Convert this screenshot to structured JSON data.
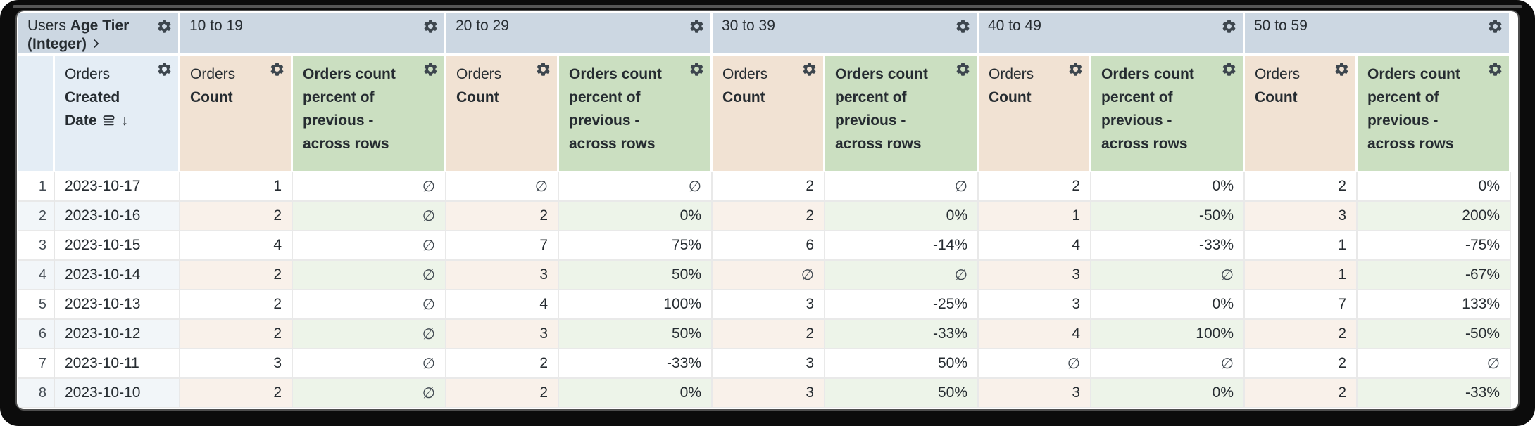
{
  "table": {
    "corner": {
      "dimension_prefix": "Users",
      "dimension_name": "Age Tier (Integer)",
      "row_field_prefix": "Orders",
      "row_field_name": "Created Date"
    },
    "tiers": [
      {
        "label": "10 to 19"
      },
      {
        "label": "20 to 29"
      },
      {
        "label": "30 to 39"
      },
      {
        "label": "40 to 49"
      },
      {
        "label": "50 to 59"
      }
    ],
    "measures": {
      "count_prefix": "Orders",
      "count_name": "Count",
      "pct_name": "Orders count percent of previous - across rows"
    },
    "icons": {
      "sort_desc": "↓"
    },
    "null_symbol": "∅",
    "rows": [
      {
        "n": "1",
        "date": "2023-10-17",
        "values": [
          "1",
          "∅",
          "∅",
          "∅",
          "2",
          "∅",
          "2",
          "0%",
          "2",
          "0%"
        ]
      },
      {
        "n": "2",
        "date": "2023-10-16",
        "values": [
          "2",
          "∅",
          "2",
          "0%",
          "2",
          "0%",
          "1",
          "-50%",
          "3",
          "200%"
        ]
      },
      {
        "n": "3",
        "date": "2023-10-15",
        "values": [
          "4",
          "∅",
          "7",
          "75%",
          "6",
          "-14%",
          "4",
          "-33%",
          "1",
          "-75%"
        ]
      },
      {
        "n": "4",
        "date": "2023-10-14",
        "values": [
          "2",
          "∅",
          "3",
          "50%",
          "∅",
          "∅",
          "3",
          "∅",
          "1",
          "-67%"
        ]
      },
      {
        "n": "5",
        "date": "2023-10-13",
        "values": [
          "2",
          "∅",
          "4",
          "100%",
          "3",
          "-25%",
          "3",
          "0%",
          "7",
          "133%"
        ]
      },
      {
        "n": "6",
        "date": "2023-10-12",
        "values": [
          "2",
          "∅",
          "3",
          "50%",
          "2",
          "-33%",
          "4",
          "100%",
          "2",
          "-50%"
        ]
      },
      {
        "n": "7",
        "date": "2023-10-11",
        "values": [
          "3",
          "∅",
          "2",
          "-33%",
          "3",
          "50%",
          "∅",
          "∅",
          "2",
          "∅"
        ]
      },
      {
        "n": "8",
        "date": "2023-10-10",
        "values": [
          "2",
          "∅",
          "2",
          "0%",
          "3",
          "50%",
          "3",
          "0%",
          "2",
          "-33%"
        ]
      }
    ],
    "colors": {
      "header_blue": "#ccd7e2",
      "subheader_blue": "#e4edf5",
      "count_tan": "#f1e2d3",
      "pct_green": "#cbdfc1",
      "stripe_blue": "#f2f6f9",
      "stripe_tan": "#f9f1ea",
      "stripe_green": "#edf4e9",
      "text": "#262c31",
      "frame": "#0c0c0c"
    }
  }
}
